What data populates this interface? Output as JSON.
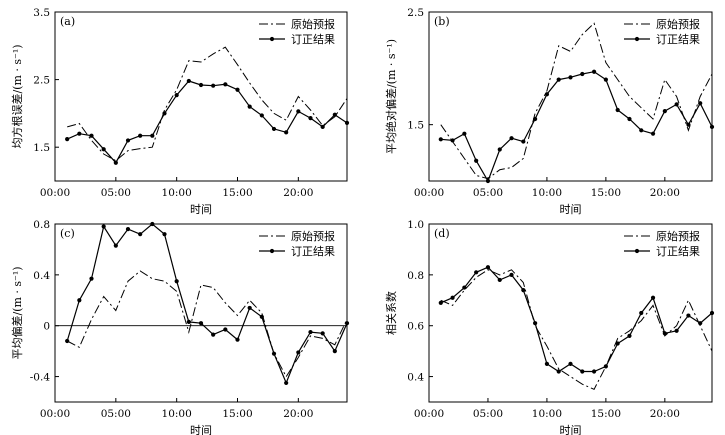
{
  "legend": {
    "forecast": "原始预报",
    "corrected": "订正结果"
  },
  "chart_data": [
    {
      "type": "line",
      "panel_label": "(a)",
      "xlabel": "时间",
      "ylabel": "均方根误差/(m · s⁻¹)",
      "xlim": [
        0,
        24
      ],
      "ylim": [
        1.0,
        3.5
      ],
      "xticks": [
        0,
        5,
        10,
        15,
        20
      ],
      "xtick_labels": [
        "00:00",
        "05:00",
        "10:00",
        "15:00",
        "20:00"
      ],
      "yticks": [
        1.5,
        2.5,
        3.5
      ],
      "ytick_labels": [
        "1.5",
        "2.5",
        "3.5"
      ],
      "legend_position": "top-right",
      "zero_line": false,
      "x": [
        1,
        2,
        3,
        4,
        5,
        6,
        7,
        8,
        9,
        10,
        11,
        12,
        13,
        14,
        15,
        16,
        17,
        18,
        19,
        20,
        21,
        22,
        23,
        24
      ],
      "series": [
        {
          "name": "原始预报",
          "style": "dash-dot",
          "values": [
            1.8,
            1.85,
            1.6,
            1.4,
            1.3,
            1.45,
            1.48,
            1.5,
            2.05,
            2.35,
            2.78,
            2.76,
            2.88,
            2.98,
            2.72,
            2.45,
            2.2,
            2.0,
            1.9,
            2.25,
            2.05,
            1.82,
            1.95,
            2.22
          ]
        },
        {
          "name": "订正结果",
          "style": "solid-marker",
          "values": [
            1.62,
            1.7,
            1.67,
            1.47,
            1.27,
            1.6,
            1.67,
            1.67,
            2.0,
            2.27,
            2.48,
            2.42,
            2.41,
            2.43,
            2.35,
            2.1,
            1.97,
            1.77,
            1.72,
            2.03,
            1.93,
            1.8,
            1.98,
            1.86
          ]
        }
      ]
    },
    {
      "type": "line",
      "panel_label": "(b)",
      "xlabel": "时间",
      "ylabel": "平均绝对偏差/(m · s⁻¹)",
      "xlim": [
        0,
        24
      ],
      "ylim": [
        1.0,
        2.5
      ],
      "xticks": [
        0,
        5,
        10,
        15,
        20
      ],
      "xtick_labels": [
        "00:00",
        "05:00",
        "10:00",
        "15:00",
        "20:00"
      ],
      "yticks": [
        1.5,
        2.5
      ],
      "ytick_labels": [
        "1.5",
        "2.5"
      ],
      "legend_position": "top-right",
      "zero_line": false,
      "x": [
        1,
        2,
        3,
        4,
        5,
        6,
        7,
        8,
        9,
        10,
        11,
        12,
        13,
        14,
        15,
        16,
        17,
        18,
        19,
        20,
        21,
        22,
        23,
        24
      ],
      "series": [
        {
          "name": "原始预报",
          "style": "dash-dot",
          "values": [
            1.5,
            1.35,
            1.2,
            1.05,
            1.02,
            1.1,
            1.12,
            1.2,
            1.6,
            1.8,
            2.2,
            2.15,
            2.3,
            2.4,
            2.05,
            1.9,
            1.75,
            1.65,
            1.55,
            1.9,
            1.75,
            1.45,
            1.75,
            1.95
          ]
        },
        {
          "name": "订正结果",
          "style": "solid-marker",
          "values": [
            1.37,
            1.36,
            1.42,
            1.18,
            1.0,
            1.28,
            1.38,
            1.35,
            1.55,
            1.77,
            1.9,
            1.92,
            1.95,
            1.97,
            1.9,
            1.63,
            1.55,
            1.45,
            1.42,
            1.62,
            1.68,
            1.5,
            1.69,
            1.48
          ]
        }
      ]
    },
    {
      "type": "line",
      "panel_label": "(c)",
      "xlabel": "时间",
      "ylabel": "平均偏差/(m · s⁻¹)",
      "xlim": [
        0,
        24
      ],
      "ylim": [
        -0.6,
        0.8
      ],
      "xticks": [
        0,
        5,
        10,
        15,
        20
      ],
      "xtick_labels": [
        "00:00",
        "05:00",
        "10:00",
        "15:00",
        "20:00"
      ],
      "yticks": [
        -0.4,
        0,
        0.4,
        0.8
      ],
      "ytick_labels": [
        "-0.4",
        "0",
        "0.4",
        "0.8"
      ],
      "legend_position": "top-right",
      "zero_line": true,
      "x": [
        1,
        2,
        3,
        4,
        5,
        6,
        7,
        8,
        9,
        10,
        11,
        12,
        13,
        14,
        15,
        16,
        17,
        18,
        19,
        20,
        21,
        22,
        23,
        24
      ],
      "series": [
        {
          "name": "原始预报",
          "style": "dash-dot",
          "values": [
            -0.12,
            -0.17,
            0.05,
            0.23,
            0.12,
            0.35,
            0.43,
            0.37,
            0.35,
            0.27,
            -0.05,
            0.32,
            0.3,
            0.18,
            0.08,
            0.2,
            0.1,
            -0.22,
            -0.4,
            -0.25,
            -0.08,
            -0.1,
            -0.15,
            0.05
          ]
        },
        {
          "name": "订正结果",
          "style": "solid-marker",
          "values": [
            -0.12,
            0.2,
            0.37,
            0.78,
            0.63,
            0.76,
            0.72,
            0.8,
            0.72,
            0.35,
            0.03,
            0.02,
            -0.07,
            -0.03,
            -0.11,
            0.14,
            0.07,
            -0.22,
            -0.45,
            -0.21,
            -0.05,
            -0.06,
            -0.2,
            0.02
          ]
        }
      ]
    },
    {
      "type": "line",
      "panel_label": "(d)",
      "xlabel": "时间",
      "ylabel": "相关系数",
      "xlim": [
        0,
        24
      ],
      "ylim": [
        0.3,
        1.0
      ],
      "xticks": [
        0,
        5,
        10,
        15,
        20
      ],
      "xtick_labels": [
        "00:00",
        "05:00",
        "10:00",
        "15:00",
        "20:00"
      ],
      "yticks": [
        0.4,
        0.6,
        0.8,
        1.0
      ],
      "ytick_labels": [
        "0.4",
        "0.6",
        "0.8",
        "1.0"
      ],
      "legend_position": "top-right",
      "zero_line": false,
      "x": [
        1,
        2,
        3,
        4,
        5,
        6,
        7,
        8,
        9,
        10,
        11,
        12,
        13,
        14,
        15,
        16,
        17,
        18,
        19,
        20,
        21,
        22,
        23,
        24
      ],
      "series": [
        {
          "name": "原始预报",
          "style": "dash-dot",
          "values": [
            0.7,
            0.68,
            0.74,
            0.79,
            0.82,
            0.8,
            0.82,
            0.77,
            0.6,
            0.52,
            0.43,
            0.4,
            0.37,
            0.35,
            0.44,
            0.55,
            0.58,
            0.62,
            0.68,
            0.56,
            0.6,
            0.7,
            0.6,
            0.5
          ]
        },
        {
          "name": "订正结果",
          "style": "solid-marker",
          "values": [
            0.69,
            0.71,
            0.75,
            0.81,
            0.83,
            0.78,
            0.8,
            0.74,
            0.61,
            0.45,
            0.42,
            0.45,
            0.42,
            0.42,
            0.44,
            0.53,
            0.56,
            0.65,
            0.71,
            0.57,
            0.58,
            0.64,
            0.61,
            0.65
          ]
        }
      ]
    }
  ]
}
